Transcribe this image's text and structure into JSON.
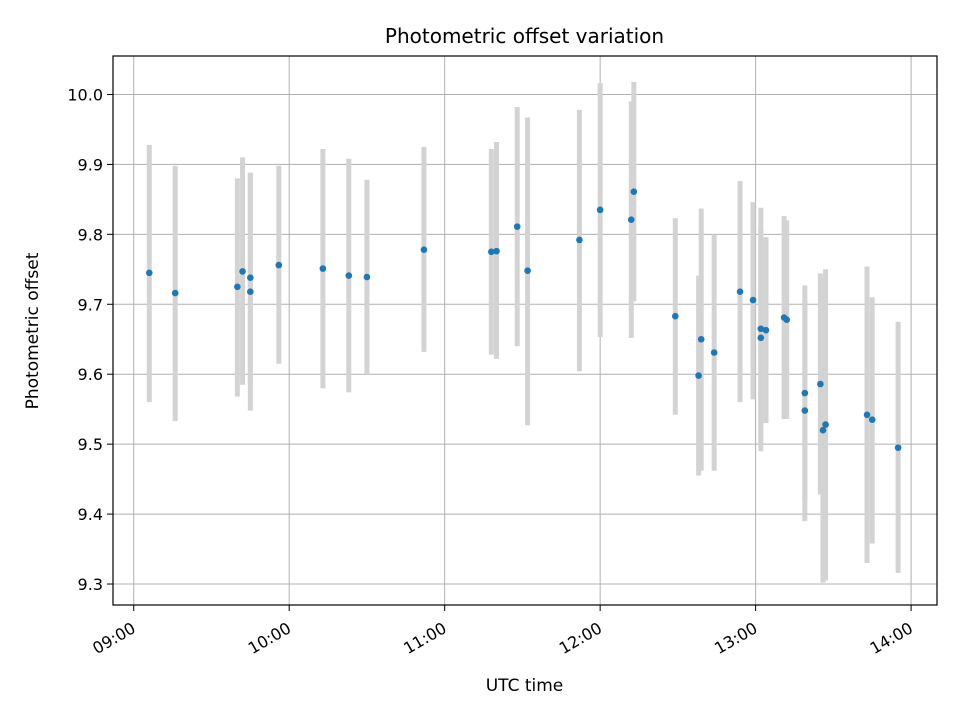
{
  "chart_data": {
    "type": "scatter",
    "title": "Photometric offset variation",
    "xlabel": "UTC time",
    "ylabel": "Photometric offset",
    "xlim": [
      "08:52",
      "14:10"
    ],
    "ylim": [
      9.27,
      10.055
    ],
    "x_ticks": [
      "09:00",
      "10:00",
      "11:00",
      "12:00",
      "13:00",
      "14:00"
    ],
    "y_ticks": [
      "9.3",
      "9.4",
      "9.5",
      "9.6",
      "9.7",
      "9.8",
      "9.9",
      "10.0"
    ],
    "grid": true,
    "legend": "none",
    "colors": {
      "marker": "#1f77b4",
      "errorbar": "#d3d3d3",
      "grid": "#b0b0b0"
    },
    "series": [
      {
        "points": [
          {
            "x": "09:06",
            "y": 9.745,
            "low": 9.56,
            "high": 9.928
          },
          {
            "x": "09:16",
            "y": 9.716,
            "low": 9.533,
            "high": 9.898
          },
          {
            "x": "09:40",
            "y": 9.725,
            "low": 9.568,
            "high": 9.88
          },
          {
            "x": "09:42",
            "y": 9.747,
            "low": 9.585,
            "high": 9.91
          },
          {
            "x": "09:45",
            "y": 9.718,
            "low": 9.548,
            "high": 9.888
          },
          {
            "x": "09:45",
            "y": 9.738,
            "low": 9.588,
            "high": 9.888
          },
          {
            "x": "09:56",
            "y": 9.756,
            "low": 9.615,
            "high": 9.898
          },
          {
            "x": "10:13",
            "y": 9.751,
            "low": 9.58,
            "high": 9.922
          },
          {
            "x": "10:23",
            "y": 9.741,
            "low": 9.574,
            "high": 9.908
          },
          {
            "x": "10:30",
            "y": 9.739,
            "low": 9.6,
            "high": 9.878
          },
          {
            "x": "10:52",
            "y": 9.778,
            "low": 9.632,
            "high": 9.925
          },
          {
            "x": "11:18",
            "y": 9.775,
            "low": 9.628,
            "high": 9.922
          },
          {
            "x": "11:20",
            "y": 9.776,
            "low": 9.622,
            "high": 9.932
          },
          {
            "x": "11:28",
            "y": 9.811,
            "low": 9.64,
            "high": 9.982
          },
          {
            "x": "11:32",
            "y": 9.748,
            "low": 9.527,
            "high": 9.967
          },
          {
            "x": "11:52",
            "y": 9.792,
            "low": 9.604,
            "high": 9.978
          },
          {
            "x": "12:00",
            "y": 9.835,
            "low": 9.653,
            "high": 10.016
          },
          {
            "x": "12:12",
            "y": 9.821,
            "low": 9.652,
            "high": 9.99
          },
          {
            "x": "12:13",
            "y": 9.861,
            "low": 9.704,
            "high": 10.018
          },
          {
            "x": "12:29",
            "y": 9.683,
            "low": 9.542,
            "high": 9.823
          },
          {
            "x": "12:38",
            "y": 9.598,
            "low": 9.455,
            "high": 9.741
          },
          {
            "x": "12:39",
            "y": 9.65,
            "low": 9.462,
            "high": 9.837
          },
          {
            "x": "12:44",
            "y": 9.631,
            "low": 9.462,
            "high": 9.8
          },
          {
            "x": "12:54",
            "y": 9.718,
            "low": 9.56,
            "high": 9.876
          },
          {
            "x": "12:59",
            "y": 9.706,
            "low": 9.564,
            "high": 9.846
          },
          {
            "x": "13:02",
            "y": 9.652,
            "low": 9.49,
            "high": 9.838
          },
          {
            "x": "13:02",
            "y": 9.665,
            "low": 9.5,
            "high": 9.808
          },
          {
            "x": "13:04",
            "y": 9.663,
            "low": 9.53,
            "high": 9.796
          },
          {
            "x": "13:11",
            "y": 9.681,
            "low": 9.536,
            "high": 9.826
          },
          {
            "x": "13:12",
            "y": 9.678,
            "low": 9.536,
            "high": 9.82
          },
          {
            "x": "13:19",
            "y": 9.573,
            "low": 9.42,
            "high": 9.727
          },
          {
            "x": "13:19",
            "y": 9.548,
            "low": 9.39,
            "high": 9.706
          },
          {
            "x": "13:25",
            "y": 9.586,
            "low": 9.428,
            "high": 9.744
          },
          {
            "x": "13:26",
            "y": 9.52,
            "low": 9.302,
            "high": 9.738
          },
          {
            "x": "13:27",
            "y": 9.528,
            "low": 9.305,
            "high": 9.75
          },
          {
            "x": "13:43",
            "y": 9.542,
            "low": 9.33,
            "high": 9.754
          },
          {
            "x": "13:45",
            "y": 9.535,
            "low": 9.358,
            "high": 9.71
          },
          {
            "x": "13:55",
            "y": 9.495,
            "low": 9.316,
            "high": 9.675
          }
        ]
      }
    ]
  }
}
